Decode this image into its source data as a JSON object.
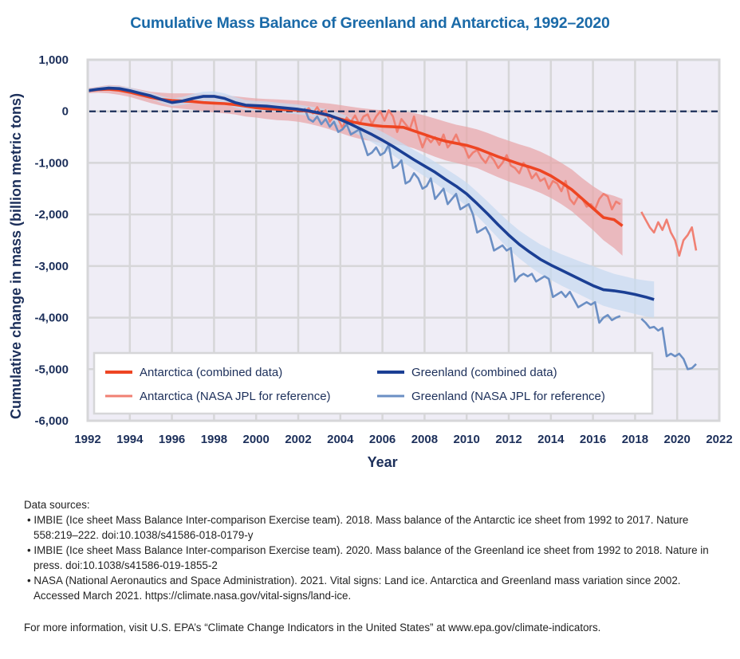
{
  "chart_data": {
    "type": "line",
    "title": "Cumulative Mass Balance of Greenland and Antarctica, 1992–2020",
    "xlabel": "Year",
    "ylabel": "Cumulative change in mass (billion metric tons)",
    "xlim": [
      1992,
      2022
    ],
    "ylim": [
      -6000,
      1000
    ],
    "x_ticks": [
      "1992",
      "1994",
      "1996",
      "1998",
      "2000",
      "2002",
      "2004",
      "2006",
      "2008",
      "2010",
      "2012",
      "2014",
      "2016",
      "2018",
      "2020",
      "2022"
    ],
    "y_ticks": [
      "1,000",
      "0",
      "-1,000",
      "-2,000",
      "-3,000",
      "-4,000",
      "-5,000",
      "-6,000"
    ],
    "y_tick_values": [
      1000,
      0,
      -1000,
      -2000,
      -3000,
      -4000,
      -5000,
      -6000
    ],
    "reference_line": {
      "y": 0,
      "style": "dashed",
      "color": "#1c2f5a"
    },
    "grid": true,
    "legend_position": "bottom-left",
    "series": [
      {
        "name": "Antarctica (combined data)",
        "color": "#ee4523",
        "band_color": "#e8a5a8",
        "x": [
          1992,
          1992.5,
          1993,
          1993.5,
          1994,
          1994.5,
          1995,
          1995.5,
          1996,
          1996.5,
          1997,
          1997.5,
          1998,
          1998.5,
          1999,
          1999.5,
          2000,
          2000.5,
          2001,
          2001.5,
          2002,
          2002.5,
          2003,
          2003.5,
          2004,
          2004.5,
          2005,
          2005.5,
          2006,
          2006.5,
          2007,
          2007.5,
          2008,
          2008.5,
          2009,
          2009.5,
          2010,
          2010.5,
          2011,
          2011.5,
          2012,
          2012.5,
          2013,
          2013.5,
          2014,
          2014.5,
          2015,
          2015.5,
          2016,
          2016.5,
          2017,
          2017.4
        ],
        "y": [
          400,
          420,
          430,
          410,
          370,
          320,
          270,
          230,
          210,
          200,
          190,
          170,
          160,
          150,
          130,
          100,
          70,
          50,
          40,
          30,
          20,
          0,
          -40,
          -90,
          -150,
          -200,
          -240,
          -270,
          -290,
          -300,
          -310,
          -380,
          -450,
          -520,
          -580,
          -620,
          -660,
          -720,
          -800,
          -880,
          -950,
          -1020,
          -1080,
          -1150,
          -1250,
          -1380,
          -1520,
          -1700,
          -1880,
          -2060,
          -2100,
          -2220
        ],
        "band_upper": [
          450,
          480,
          510,
          500,
          460,
          420,
          380,
          360,
          350,
          350,
          350,
          340,
          330,
          310,
          290,
          270,
          250,
          240,
          230,
          220,
          210,
          190,
          170,
          150,
          120,
          90,
          60,
          40,
          20,
          10,
          0,
          -30,
          -80,
          -140,
          -200,
          -260,
          -300,
          -350,
          -420,
          -500,
          -570,
          -640,
          -700,
          -780,
          -880,
          -1000,
          -1130,
          -1300,
          -1450,
          -1580,
          -1640,
          -1700
        ],
        "band_lower": [
          350,
          360,
          350,
          320,
          280,
          220,
          160,
          110,
          70,
          50,
          30,
          0,
          -20,
          -40,
          -60,
          -100,
          -120,
          -150,
          -170,
          -180,
          -200,
          -240,
          -290,
          -350,
          -420,
          -490,
          -540,
          -580,
          -620,
          -640,
          -660,
          -720,
          -800,
          -880,
          -950,
          -1000,
          -1050,
          -1100,
          -1190,
          -1280,
          -1360,
          -1430,
          -1500,
          -1580,
          -1680,
          -1800,
          -1940,
          -2120,
          -2300,
          -2500,
          -2650,
          -2800
        ]
      },
      {
        "name": "Greenland (combined data)",
        "color": "#1b3f94",
        "band_color": "#c6d9f0",
        "x": [
          1992,
          1992.5,
          1993,
          1993.5,
          1994,
          1994.5,
          1995,
          1995.5,
          1996,
          1996.5,
          1997,
          1997.5,
          1998,
          1998.5,
          1999,
          1999.5,
          2000,
          2000.5,
          2001,
          2001.5,
          2002,
          2002.5,
          2003,
          2003.5,
          2004,
          2004.5,
          2005,
          2005.5,
          2006,
          2006.5,
          2007,
          2007.5,
          2008,
          2008.5,
          2009,
          2009.5,
          2010,
          2010.5,
          2011,
          2011.5,
          2012,
          2012.5,
          2013,
          2013.5,
          2014,
          2014.5,
          2015,
          2015.5,
          2016,
          2016.5,
          2017,
          2017.5,
          2018,
          2018.5,
          2018.9
        ],
        "y": [
          400,
          430,
          450,
          440,
          400,
          350,
          300,
          230,
          170,
          200,
          250,
          290,
          290,
          250,
          170,
          120,
          110,
          100,
          80,
          60,
          40,
          10,
          -30,
          -80,
          -160,
          -250,
          -350,
          -450,
          -560,
          -680,
          -810,
          -940,
          -1060,
          -1180,
          -1320,
          -1450,
          -1600,
          -1790,
          -1990,
          -2200,
          -2400,
          -2580,
          -2730,
          -2870,
          -2980,
          -3080,
          -3180,
          -3280,
          -3380,
          -3460,
          -3480,
          -3510,
          -3550,
          -3600,
          -3650
        ],
        "band_upper": [
          440,
          470,
          500,
          490,
          460,
          410,
          360,
          300,
          250,
          280,
          340,
          380,
          390,
          350,
          280,
          220,
          200,
          190,
          170,
          150,
          130,
          100,
          70,
          30,
          -40,
          -120,
          -210,
          -300,
          -400,
          -510,
          -630,
          -750,
          -860,
          -980,
          -1110,
          -1240,
          -1380,
          -1560,
          -1750,
          -1950,
          -2140,
          -2310,
          -2450,
          -2580,
          -2680,
          -2770,
          -2850,
          -2930,
          -3000,
          -3080,
          -3150,
          -3200,
          -3250,
          -3280,
          -3300
        ],
        "band_lower": [
          370,
          390,
          400,
          390,
          340,
          290,
          240,
          160,
          100,
          120,
          160,
          190,
          190,
          150,
          70,
          20,
          10,
          0,
          -20,
          -40,
          -60,
          -90,
          -140,
          -200,
          -280,
          -380,
          -490,
          -600,
          -720,
          -850,
          -990,
          -1130,
          -1260,
          -1390,
          -1540,
          -1680,
          -1840,
          -2030,
          -2240,
          -2460,
          -2670,
          -2850,
          -3010,
          -3150,
          -3270,
          -3380,
          -3480,
          -3580,
          -3680,
          -3770,
          -3830,
          -3880,
          -3930,
          -3980,
          -4000
        ]
      },
      {
        "name": "Antarctica (NASA JPL for reference)",
        "color": "#f08073",
        "segments": [
          {
            "x": [
              2002.3,
              2002.5,
              2002.7,
              2002.9,
              2003.1,
              2003.3,
              2003.5,
              2003.7,
              2003.9,
              2004.1,
              2004.3,
              2004.5,
              2004.7,
              2004.9,
              2005.1,
              2005.3,
              2005.5,
              2005.7,
              2005.9,
              2006.1,
              2006.3,
              2006.5,
              2006.7,
              2006.9,
              2007.1,
              2007.3,
              2007.5,
              2007.7,
              2007.9,
              2008.1,
              2008.3,
              2008.5,
              2008.7,
              2008.9,
              2009.1,
              2009.3,
              2009.5,
              2009.7,
              2009.9,
              2010.1,
              2010.3,
              2010.5,
              2010.7,
              2010.9,
              2011.1,
              2011.3,
              2011.5,
              2011.7,
              2011.9,
              2012.1,
              2012.3,
              2012.5,
              2012.7,
              2012.9,
              2013.1,
              2013.3,
              2013.5,
              2013.7,
              2013.9,
              2014.1,
              2014.3,
              2014.5,
              2014.7,
              2014.9,
              2015.1,
              2015.3,
              2015.5,
              2015.7,
              2015.9,
              2016.1,
              2016.3,
              2016.5,
              2016.7,
              2016.9,
              2017.1,
              2017.3
            ],
            "y": [
              0,
              60,
              -40,
              80,
              -50,
              20,
              -200,
              -100,
              -150,
              -320,
              -120,
              -200,
              -80,
              -250,
              -100,
              -60,
              -250,
              -100,
              0,
              -180,
              20,
              -100,
              -400,
              -150,
              -250,
              -350,
              -100,
              -450,
              -700,
              -500,
              -600,
              -500,
              -650,
              -450,
              -700,
              -600,
              -450,
              -650,
              -700,
              -900,
              -800,
              -750,
              -900,
              -1000,
              -850,
              -950,
              -1100,
              -1000,
              -850,
              -1050,
              -1100,
              -1200,
              -1000,
              -1100,
              -1300,
              -1200,
              -1350,
              -1300,
              -1500,
              -1350,
              -1400,
              -1550,
              -1350,
              -1700,
              -1800,
              -1650,
              -1700,
              -1850,
              -1800,
              -1900,
              -1700,
              -1600,
              -1650,
              -1900,
              -1750,
              -1800
            ]
          },
          {
            "x": [
              2018.3,
              2018.5,
              2018.7,
              2018.9,
              2019.1,
              2019.3,
              2019.5,
              2019.7,
              2019.9,
              2020.1,
              2020.3,
              2020.5,
              2020.7,
              2020.9
            ],
            "y": [
              -1950,
              -2100,
              -2250,
              -2350,
              -2150,
              -2300,
              -2100,
              -2350,
              -2500,
              -2800,
              -2500,
              -2400,
              -2250,
              -2700
            ]
          }
        ]
      },
      {
        "name": "Greenland (NASA JPL for reference)",
        "color": "#6b8fc4",
        "segments": [
          {
            "x": [
              2002.3,
              2002.5,
              2002.7,
              2002.9,
              2003.1,
              2003.3,
              2003.5,
              2003.7,
              2003.9,
              2004.1,
              2004.3,
              2004.5,
              2004.7,
              2004.9,
              2005.1,
              2005.3,
              2005.5,
              2005.7,
              2005.9,
              2006.1,
              2006.3,
              2006.5,
              2006.7,
              2006.9,
              2007.1,
              2007.3,
              2007.5,
              2007.7,
              2007.9,
              2008.1,
              2008.3,
              2008.5,
              2008.7,
              2008.9,
              2009.1,
              2009.3,
              2009.5,
              2009.7,
              2009.9,
              2010.1,
              2010.3,
              2010.5,
              2010.7,
              2010.9,
              2011.1,
              2011.3,
              2011.5,
              2011.7,
              2011.9,
              2012.1,
              2012.3,
              2012.5,
              2012.7,
              2012.9,
              2013.1,
              2013.3,
              2013.5,
              2013.7,
              2013.9,
              2014.1,
              2014.3,
              2014.5,
              2014.7,
              2014.9,
              2015.1,
              2015.3,
              2015.5,
              2015.7,
              2015.9,
              2016.1,
              2016.3,
              2016.5,
              2016.7,
              2016.9,
              2017.1,
              2017.3
            ],
            "y": [
              60,
              -150,
              -200,
              -100,
              -250,
              -150,
              -300,
              -200,
              -400,
              -350,
              -250,
              -450,
              -400,
              -350,
              -600,
              -850,
              -800,
              -700,
              -850,
              -800,
              -650,
              -1100,
              -1050,
              -950,
              -1400,
              -1350,
              -1200,
              -1300,
              -1500,
              -1450,
              -1300,
              -1700,
              -1600,
              -1500,
              -1800,
              -1700,
              -1600,
              -1900,
              -1850,
              -1800,
              -2000,
              -2350,
              -2300,
              -2250,
              -2400,
              -2700,
              -2650,
              -2600,
              -2700,
              -2650,
              -3300,
              -3200,
              -3150,
              -3200,
              -3150,
              -3300,
              -3250,
              -3200,
              -3250,
              -3600,
              -3550,
              -3500,
              -3600,
              -3500,
              -3650,
              -3800,
              -3750,
              -3700,
              -3750,
              -3700,
              -4100,
              -4000,
              -3950,
              -4050,
              -4000,
              -3970
            ]
          },
          {
            "x": [
              2018.3,
              2018.5,
              2018.7,
              2018.9,
              2019.1,
              2019.3,
              2019.5,
              2019.7,
              2019.9,
              2020.1,
              2020.3,
              2020.5,
              2020.7,
              2020.9
            ],
            "y": [
              -4020,
              -4100,
              -4200,
              -4180,
              -4250,
              -4200,
              -4750,
              -4700,
              -4750,
              -4700,
              -4800,
              -5000,
              -4980,
              -4900
            ]
          }
        ]
      }
    ],
    "legend": [
      {
        "label": "Antarctica (combined data)",
        "color": "#ee4523",
        "weight": "thick"
      },
      {
        "label": "Greenland (combined data)",
        "color": "#1b3f94",
        "weight": "thick"
      },
      {
        "label": "Antarctica (NASA JPL for reference)",
        "color": "#f08073",
        "weight": "thin"
      },
      {
        "label": "Greenland (NASA JPL for reference)",
        "color": "#6b8fc4",
        "weight": "thin"
      }
    ]
  },
  "colors": {
    "title": "#1a6aa8",
    "text_dark": "#1c2f5a",
    "plot_bg": "#efedf6",
    "grid": "#d6d6d8"
  },
  "notes": {
    "heading": "Data sources:",
    "sources": [
      "• IMBIE (Ice sheet Mass Balance Inter-comparison Exercise team). 2018. Mass balance of the Antarctic ice sheet from 1992 to 2017. Nature 558:219–222. doi:10.1038/s41586-018-0179-y",
      "• IMBIE (Ice sheet Mass Balance Inter-comparison Exercise team). 2020. Mass balance of the Greenland ice sheet from 1992 to 2018. Nature in press. doi:10.1038/s41586-019-1855-2",
      "• NASA (National Aeronautics and Space Administration). 2021. Vital signs: Land ice. Antarctica and Greenland mass variation since 2002. Accessed March 2021. https://climate.nasa.gov/vital-signs/land-ice."
    ],
    "more_info": "For more information, visit U.S. EPA’s “Climate Change Indicators in the United States” at www.epa.gov/climate-indicators."
  }
}
